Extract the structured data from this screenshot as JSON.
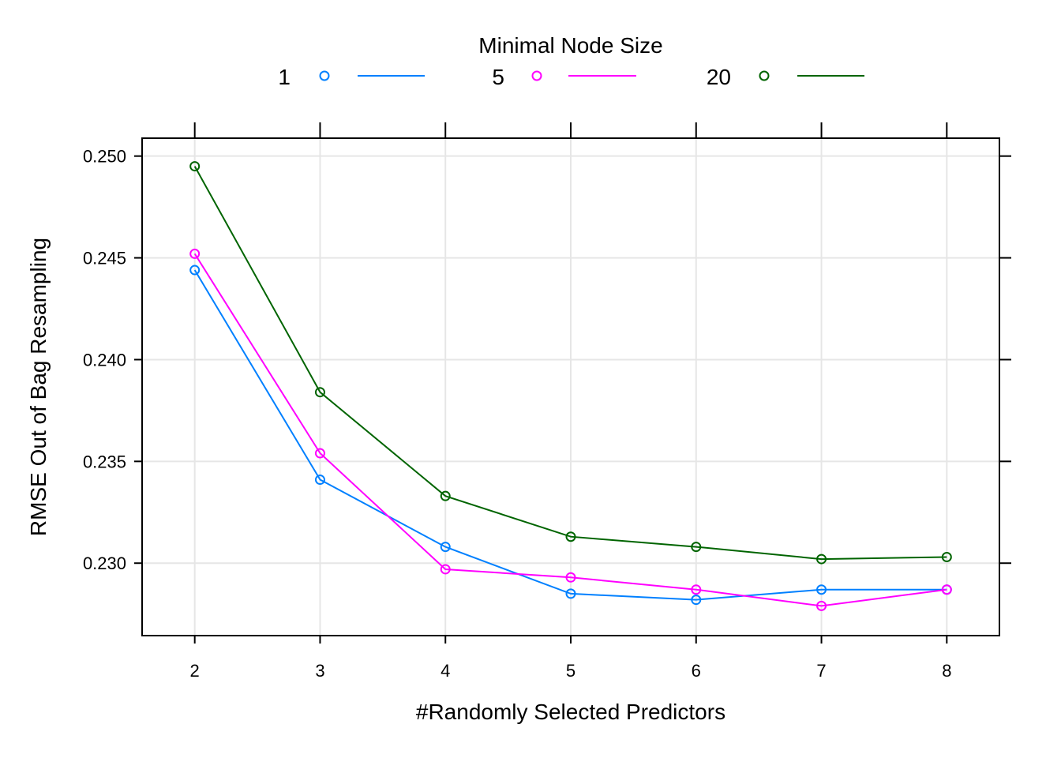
{
  "chart_data": {
    "type": "line",
    "xlabel": "#Randomly Selected Predictors",
    "ylabel": "RMSE Out of Bag Resampling",
    "xlim": [
      1.58,
      8.42
    ],
    "ylim": [
      0.22644,
      0.25088
    ],
    "x_ticks": [
      2,
      3,
      4,
      5,
      6,
      7,
      8
    ],
    "x_tick_labels": [
      "2",
      "3",
      "4",
      "5",
      "6",
      "7",
      "8"
    ],
    "y_ticks": [
      0.23,
      0.235,
      0.24,
      0.245,
      0.25
    ],
    "y_tick_labels": [
      "0.230",
      "0.235",
      "0.240",
      "0.245",
      "0.250"
    ],
    "grid": true,
    "legend": {
      "title": "Minimal Node Size",
      "placement": "top-center"
    },
    "x": [
      2,
      3,
      4,
      5,
      6,
      7,
      8
    ],
    "series": [
      {
        "name": "1",
        "color": "#0080ff",
        "values": [
          0.2444,
          0.2341,
          0.2308,
          0.2285,
          0.2282,
          0.2287,
          0.2287
        ]
      },
      {
        "name": "5",
        "color": "#ff00ff",
        "values": [
          0.2452,
          0.2354,
          0.2297,
          0.2293,
          0.2287,
          0.2279,
          0.2287
        ]
      },
      {
        "name": "20",
        "color": "#006400",
        "values": [
          0.2495,
          0.2384,
          0.2333,
          0.2313,
          0.2308,
          0.2302,
          0.2303
        ]
      }
    ]
  }
}
